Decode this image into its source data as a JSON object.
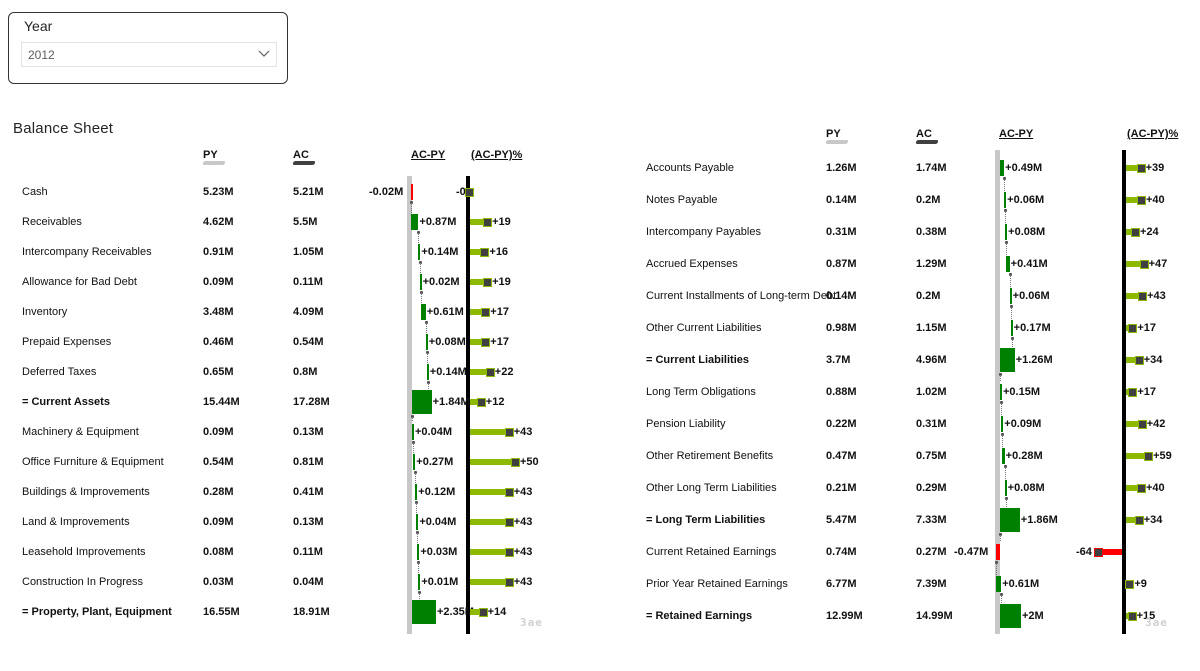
{
  "slicer": {
    "title": "Year",
    "value": "2012",
    "chevron_icon": "chevron-down-icon"
  },
  "report": {
    "title": "Balance Sheet",
    "logo_text": "3ae"
  },
  "headers": {
    "py": "PY",
    "ac": "AC",
    "var": "AC-PY",
    "pct": "(AC-PY)%"
  },
  "colors": {
    "py_bar": "#c8c8c8",
    "ac_bar": "#404040",
    "positive": "#008000",
    "negative": "#ff0000",
    "lollipop_positive": "#8dba00",
    "lollipop_negative": "#ff0000",
    "axis": "#000000",
    "var_axis": "#c8c8c8"
  },
  "chart_data": [
    {
      "type": "table",
      "title": "Balance Sheet",
      "columns": [
        "PY",
        "AC",
        "AC-PY",
        "(AC-PY)%"
      ],
      "rows": [
        {
          "label": "Cash",
          "py": "5.23M",
          "ac": "5.21M",
          "var": -0.02,
          "var_label": "-0.02M",
          "pct": 0,
          "pct_label": "-0",
          "bold": false
        },
        {
          "label": "Receivables",
          "py": "4.62M",
          "ac": "5.5M",
          "var": 0.87,
          "var_label": "+0.87M",
          "pct": 19,
          "pct_label": "+19",
          "bold": false
        },
        {
          "label": "Intercompany Receivables",
          "py": "0.91M",
          "ac": "1.05M",
          "var": 0.14,
          "var_label": "+0.14M",
          "pct": 16,
          "pct_label": "+16",
          "bold": false
        },
        {
          "label": "Allowance for Bad Debt",
          "py": "0.09M",
          "ac": "0.11M",
          "var": 0.02,
          "var_label": "+0.02M",
          "pct": 19,
          "pct_label": "+19",
          "bold": false
        },
        {
          "label": "Inventory",
          "py": "3.48M",
          "ac": "4.09M",
          "var": 0.61,
          "var_label": "+0.61M",
          "pct": 17,
          "pct_label": "+17",
          "bold": false
        },
        {
          "label": "Prepaid Expenses",
          "py": "0.46M",
          "ac": "0.54M",
          "var": 0.08,
          "var_label": "+0.08M",
          "pct": 17,
          "pct_label": "+17",
          "bold": false
        },
        {
          "label": "Deferred Taxes",
          "py": "0.65M",
          "ac": "0.8M",
          "var": 0.14,
          "var_label": "+0.14M",
          "pct": 22,
          "pct_label": "+22",
          "bold": false
        },
        {
          "label": "= Current Assets",
          "py": "15.44M",
          "ac": "17.28M",
          "var": 1.84,
          "var_label": "+1.84M",
          "pct": 12,
          "pct_label": "+12",
          "bold": true
        },
        {
          "label": "Machinery & Equipment",
          "py": "0.09M",
          "ac": "0.13M",
          "var": 0.04,
          "var_label": "+0.04M",
          "pct": 43,
          "pct_label": "+43",
          "bold": false
        },
        {
          "label": "Office Furniture & Equipment",
          "py": "0.54M",
          "ac": "0.81M",
          "var": 0.27,
          "var_label": "+0.27M",
          "pct": 50,
          "pct_label": "+50",
          "bold": false
        },
        {
          "label": "Buildings & Improvements",
          "py": "0.28M",
          "ac": "0.41M",
          "var": 0.12,
          "var_label": "+0.12M",
          "pct": 43,
          "pct_label": "+43",
          "bold": false
        },
        {
          "label": "Land & Improvements",
          "py": "0.09M",
          "ac": "0.13M",
          "var": 0.04,
          "var_label": "+0.04M",
          "pct": 43,
          "pct_label": "+43",
          "bold": false
        },
        {
          "label": "Leasehold Improvements",
          "py": "0.08M",
          "ac": "0.11M",
          "var": 0.03,
          "var_label": "+0.03M",
          "pct": 43,
          "pct_label": "+43",
          "bold": false
        },
        {
          "label": "Construction In Progress",
          "py": "0.03M",
          "ac": "0.04M",
          "var": 0.01,
          "var_label": "+0.01M",
          "pct": 43,
          "pct_label": "+43",
          "bold": false
        },
        {
          "label": "= Property, Plant, Equipment",
          "py": "16.55M",
          "ac": "18.91M",
          "var": 2.35,
          "var_label": "+2.35M",
          "pct": 14,
          "pct_label": "+14",
          "bold": true
        }
      ]
    },
    {
      "type": "table",
      "title": "",
      "columns": [
        "PY",
        "AC",
        "AC-PY",
        "(AC-PY)%"
      ],
      "rows": [
        {
          "label": "Accounts Payable",
          "py": "1.26M",
          "ac": "1.74M",
          "var": 0.49,
          "var_label": "+0.49M",
          "pct": 39,
          "pct_label": "+39",
          "bold": false
        },
        {
          "label": "Notes Payable",
          "py": "0.14M",
          "ac": "0.2M",
          "var": 0.06,
          "var_label": "+0.06M",
          "pct": 40,
          "pct_label": "+40",
          "bold": false
        },
        {
          "label": "Intercompany Payables",
          "py": "0.31M",
          "ac": "0.38M",
          "var": 0.08,
          "var_label": "+0.08M",
          "pct": 24,
          "pct_label": "+24",
          "bold": false
        },
        {
          "label": "Accrued Expenses",
          "py": "0.87M",
          "ac": "1.29M",
          "var": 0.41,
          "var_label": "+0.41M",
          "pct": 47,
          "pct_label": "+47",
          "bold": false
        },
        {
          "label": "Current Installments of Long-term Debt",
          "py": "0.14M",
          "ac": "0.2M",
          "var": 0.06,
          "var_label": "+0.06M",
          "pct": 43,
          "pct_label": "+43",
          "bold": false
        },
        {
          "label": "Other Current Liabilities",
          "py": "0.98M",
          "ac": "1.15M",
          "var": 0.17,
          "var_label": "+0.17M",
          "pct": 17,
          "pct_label": "+17",
          "bold": false
        },
        {
          "label": "= Current Liabilities",
          "py": "3.7M",
          "ac": "4.96M",
          "var": 1.26,
          "var_label": "+1.26M",
          "pct": 34,
          "pct_label": "+34",
          "bold": true
        },
        {
          "label": "Long Term Obligations",
          "py": "0.88M",
          "ac": "1.02M",
          "var": 0.15,
          "var_label": "+0.15M",
          "pct": 17,
          "pct_label": "+17",
          "bold": false
        },
        {
          "label": "Pension Liability",
          "py": "0.22M",
          "ac": "0.31M",
          "var": 0.09,
          "var_label": "+0.09M",
          "pct": 42,
          "pct_label": "+42",
          "bold": false
        },
        {
          "label": "Other Retirement Benefits",
          "py": "0.47M",
          "ac": "0.75M",
          "var": 0.28,
          "var_label": "+0.28M",
          "pct": 59,
          "pct_label": "+59",
          "bold": false
        },
        {
          "label": "Other Long Term Liabilities",
          "py": "0.21M",
          "ac": "0.29M",
          "var": 0.08,
          "var_label": "+0.08M",
          "pct": 40,
          "pct_label": "+40",
          "bold": false
        },
        {
          "label": "= Long Term Liabilities",
          "py": "5.47M",
          "ac": "7.33M",
          "var": 1.86,
          "var_label": "+1.86M",
          "pct": 34,
          "pct_label": "+34",
          "bold": true
        },
        {
          "label": "Current Retained Earnings",
          "py": "0.74M",
          "ac": "0.27M",
          "var": -0.47,
          "var_label": "-0.47M",
          "pct": -64,
          "pct_label": "-64",
          "bold": false
        },
        {
          "label": "Prior Year Retained Earnings",
          "py": "6.77M",
          "ac": "7.39M",
          "var": 0.61,
          "var_label": "+0.61M",
          "pct": 9,
          "pct_label": "+9",
          "bold": false
        },
        {
          "label": "= Retained Earnings",
          "py": "12.99M",
          "ac": "14.99M",
          "var": 2,
          "var_label": "+2M",
          "pct": 15,
          "pct_label": "+15",
          "bold": true
        }
      ]
    }
  ]
}
